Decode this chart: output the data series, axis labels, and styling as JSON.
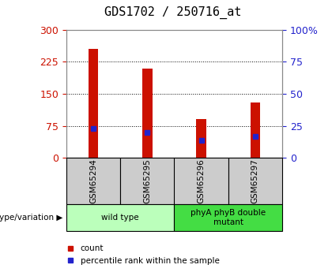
{
  "title": "GDS1702 / 250716_at",
  "samples": [
    "GSM65294",
    "GSM65295",
    "GSM65296",
    "GSM65297"
  ],
  "counts": [
    255,
    210,
    90,
    130
  ],
  "percentile_counts": [
    68,
    60,
    40,
    50
  ],
  "left_ylim": [
    0,
    300
  ],
  "left_yticks": [
    0,
    75,
    150,
    225,
    300
  ],
  "right_ylim": [
    0,
    100
  ],
  "right_yticks": [
    0,
    25,
    50,
    75,
    100
  ],
  "right_yticklabels": [
    "0",
    "25",
    "50",
    "75",
    "100%"
  ],
  "bar_color": "#CC1100",
  "blue_color": "#2222CC",
  "bar_width": 0.18,
  "groups": [
    {
      "label": "wild type",
      "samples": [
        0,
        1
      ],
      "color": "#BBFFBB"
    },
    {
      "label": "phyA phyB double\nmutant",
      "samples": [
        2,
        3
      ],
      "color": "#44DD44"
    }
  ],
  "legend_count_label": "count",
  "legend_percentile_label": "percentile rank within the sample",
  "genotype_label": "genotype/variation",
  "tick_color_left": "#CC1100",
  "tick_color_right": "#2222CC",
  "plot_bg": "#FFFFFF",
  "title_fontsize": 11,
  "axis_fontsize": 9
}
